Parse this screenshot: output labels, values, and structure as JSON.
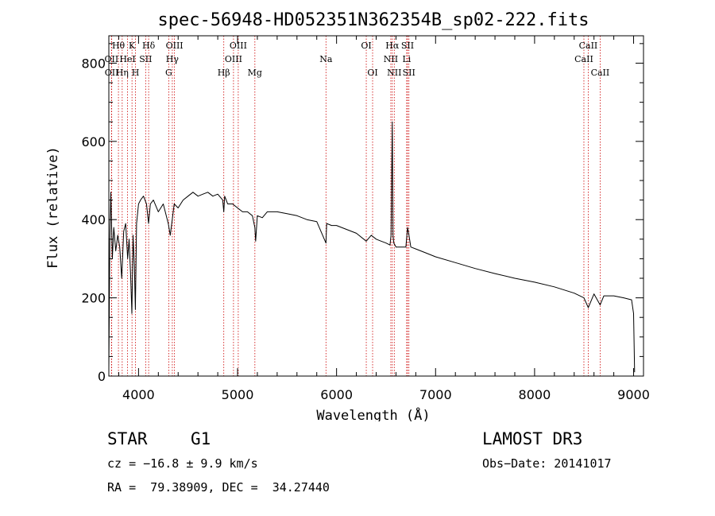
{
  "chart_data": {
    "type": "line",
    "title": "spec-56948-HD052351N362354B_sp02-222.fits",
    "xlabel": "Wavelength (Å)",
    "ylabel": "Flux (relative)",
    "xlim": [
      3700,
      9100
    ],
    "ylim": [
      0,
      870
    ],
    "xticks": [
      4000,
      5000,
      6000,
      7000,
      8000,
      9000
    ],
    "yticks": [
      0,
      200,
      400,
      600,
      800
    ],
    "grid": false,
    "series": [
      {
        "name": "spectrum",
        "x": [
          3700,
          3710,
          3720,
          3735,
          3750,
          3770,
          3790,
          3810,
          3830,
          3850,
          3870,
          3890,
          3905,
          3920,
          3933,
          3945,
          3958,
          3968,
          3980,
          4000,
          4020,
          4050,
          4080,
          4101,
          4120,
          4150,
          4200,
          4250,
          4300,
          4320,
          4340,
          4360,
          4400,
          4450,
          4500,
          4550,
          4600,
          4650,
          4700,
          4750,
          4800,
          4850,
          4861,
          4870,
          4900,
          4950,
          5000,
          5050,
          5100,
          5150,
          5175,
          5183,
          5200,
          5250,
          5300,
          5400,
          5500,
          5600,
          5700,
          5800,
          5893,
          5900,
          5950,
          6000,
          6100,
          6200,
          6300,
          6350,
          6400,
          6450,
          6500,
          6540,
          6550,
          6563,
          6570,
          6578,
          6590,
          6600,
          6650,
          6700,
          6717,
          6731,
          6750,
          6800,
          6900,
          7000,
          7200,
          7400,
          7600,
          7800,
          8000,
          8200,
          8400,
          8498,
          8542,
          8600,
          8662,
          8700,
          8800,
          8900,
          8980,
          9000,
          9010
        ],
        "values": [
          20,
          340,
          470,
          300,
          380,
          320,
          360,
          330,
          250,
          370,
          390,
          300,
          350,
          260,
          160,
          360,
          280,
          170,
          390,
          440,
          450,
          460,
          440,
          390,
          440,
          450,
          420,
          440,
          390,
          360,
          400,
          440,
          430,
          450,
          460,
          470,
          460,
          465,
          470,
          460,
          465,
          450,
          420,
          460,
          440,
          440,
          430,
          420,
          420,
          410,
          380,
          345,
          410,
          405,
          420,
          420,
          415,
          410,
          400,
          395,
          340,
          390,
          385,
          385,
          375,
          365,
          345,
          360,
          350,
          345,
          340,
          335,
          360,
          650,
          360,
          340,
          335,
          330,
          330,
          330,
          380,
          360,
          330,
          325,
          315,
          305,
          290,
          275,
          262,
          250,
          240,
          228,
          212,
          200,
          175,
          210,
          182,
          205,
          205,
          200,
          195,
          160,
          10
        ]
      }
    ],
    "line_markers": [
      {
        "label": "Hθ",
        "wl": 3797,
        "row": 0
      },
      {
        "label": "OII",
        "wl": 3727,
        "row": 1
      },
      {
        "label": "OII",
        "wl": 3729,
        "row": 2
      },
      {
        "label": "HeI",
        "wl": 3889,
        "row": 1
      },
      {
        "label": "Hη",
        "wl": 3835,
        "row": 2
      },
      {
        "label": "K",
        "wl": 3934,
        "row": 0
      },
      {
        "label": "H",
        "wl": 3969,
        "row": 2
      },
      {
        "label": "Hδ",
        "wl": 4102,
        "row": 0
      },
      {
        "label": "SII",
        "wl": 4072,
        "row": 1
      },
      {
        "label": "OIII",
        "wl": 4363,
        "row": 0
      },
      {
        "label": "Hγ",
        "wl": 4341,
        "row": 1
      },
      {
        "label": "G",
        "wl": 4305,
        "row": 2
      },
      {
        "label": "Hβ",
        "wl": 4861,
        "row": 2
      },
      {
        "label": "OIII",
        "wl": 5007,
        "row": 0
      },
      {
        "label": "OIII",
        "wl": 4959,
        "row": 1
      },
      {
        "label": "Mg",
        "wl": 5175,
        "row": 2
      },
      {
        "label": "Na",
        "wl": 5893,
        "row": 1
      },
      {
        "label": "OI",
        "wl": 6300,
        "row": 0
      },
      {
        "label": "OI",
        "wl": 6364,
        "row": 2
      },
      {
        "label": "Hα",
        "wl": 6563,
        "row": 0
      },
      {
        "label": "NII",
        "wl": 6548,
        "row": 1
      },
      {
        "label": "NII",
        "wl": 6583,
        "row": 2
      },
      {
        "label": "SII",
        "wl": 6717,
        "row": 0
      },
      {
        "label": "Li",
        "wl": 6708,
        "row": 1
      },
      {
        "label": "SII",
        "wl": 6731,
        "row": 2
      },
      {
        "label": "CaII",
        "wl": 8542,
        "row": 0
      },
      {
        "label": "CaII",
        "wl": 8498,
        "row": 1
      },
      {
        "label": "CaII",
        "wl": 8662,
        "row": 2
      }
    ]
  },
  "info": {
    "object_class": "STAR",
    "subclass": "G1",
    "survey": "LAMOST DR3",
    "cz": "cz = −16.8 ± 9.9 km/s",
    "obs_date": "Obs−Date: 20141017",
    "coords": "RA =  79.38909, DEC =  34.27440"
  },
  "colors": {
    "spectrum": "#000000",
    "marker": "#cc0000",
    "text": "#000000"
  }
}
